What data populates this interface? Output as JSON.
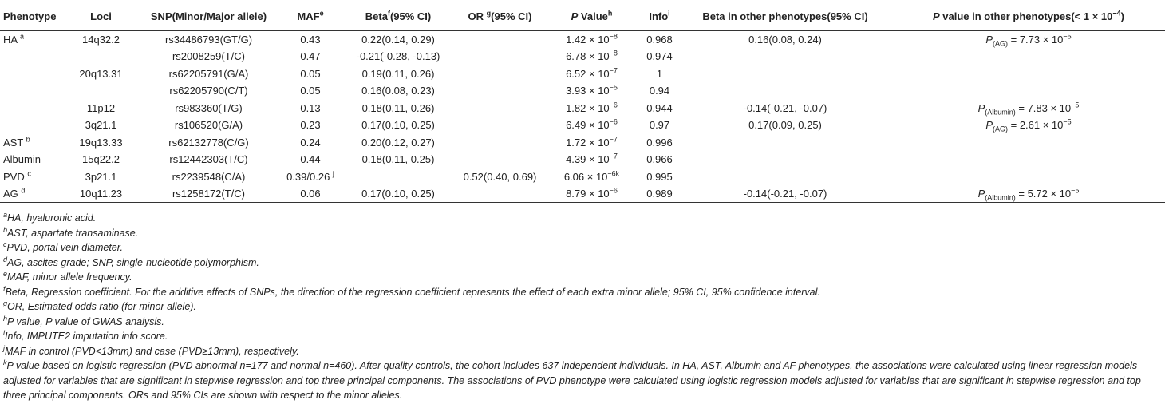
{
  "table": {
    "header": [
      "Phenotype",
      "Loci",
      "SNP(Minor/Major allele)",
      [
        {
          "t": "MAF"
        },
        {
          "t": "e",
          "s": "sup"
        }
      ],
      [
        {
          "t": "Beta"
        },
        {
          "t": "f",
          "s": "sup"
        },
        {
          "t": "(95% CI)"
        }
      ],
      [
        {
          "t": "OR "
        },
        {
          "t": "g",
          "s": "sup"
        },
        {
          "t": "(95% CI)"
        }
      ],
      [
        {
          "t": "P",
          "s": "i"
        },
        {
          "t": " Value"
        },
        {
          "t": "h",
          "s": "sup"
        }
      ],
      [
        {
          "t": "Info"
        },
        {
          "t": "i",
          "s": "sup"
        }
      ],
      "Beta in other phenotypes(95% CI)",
      [
        {
          "t": "P",
          "s": "i"
        },
        {
          "t": " value in other phenotypes(< 1 × 10"
        },
        {
          "t": "−4",
          "s": "sup"
        },
        {
          "t": ")"
        }
      ]
    ],
    "rows": [
      [
        [
          {
            "t": "HA "
          },
          {
            "t": "a",
            "s": "sup"
          }
        ],
        "14q32.2",
        "rs34486793(GT/G)",
        "0.43",
        "0.22(0.14, 0.29)",
        null,
        [
          {
            "t": "1.42 × 10"
          },
          {
            "t": "−8",
            "s": "sup"
          }
        ],
        "0.968",
        "0.16(0.08, 0.24)",
        [
          {
            "t": "P",
            "s": "i"
          },
          {
            "t": "(AG)",
            "s": "sub"
          },
          {
            "t": " = 7.73 × 10"
          },
          {
            "t": "−5",
            "s": "sup"
          }
        ]
      ],
      [
        null,
        null,
        "rs2008259(T/C)",
        "0.47",
        "-0.21(-0.28, -0.13)",
        null,
        [
          {
            "t": "6.78 × 10"
          },
          {
            "t": "−8",
            "s": "sup"
          }
        ],
        "0.974",
        null,
        null
      ],
      [
        null,
        "20q13.31",
        "rs62205791(G/A)",
        "0.05",
        "0.19(0.11, 0.26)",
        null,
        [
          {
            "t": "6.52 × 10"
          },
          {
            "t": "−7",
            "s": "sup"
          }
        ],
        "1",
        null,
        null
      ],
      [
        null,
        null,
        "rs62205790(C/T)",
        "0.05",
        "0.16(0.08, 0.23)",
        null,
        [
          {
            "t": "3.93 × 10"
          },
          {
            "t": "−5",
            "s": "sup"
          }
        ],
        "0.94",
        null,
        null
      ],
      [
        null,
        "11p12",
        "rs983360(T/G)",
        "0.13",
        "0.18(0.11, 0.26)",
        null,
        [
          {
            "t": "1.82 × 10"
          },
          {
            "t": "−6",
            "s": "sup"
          }
        ],
        "0.944",
        "-0.14(-0.21, -0.07)",
        [
          {
            "t": "P",
            "s": "i"
          },
          {
            "t": "(Albumin)",
            "s": "sub"
          },
          {
            "t": " = 7.83 × 10"
          },
          {
            "t": "−5",
            "s": "sup"
          }
        ]
      ],
      [
        null,
        "3q21.1",
        "rs106520(G/A)",
        "0.23",
        "0.17(0.10, 0.25)",
        null,
        [
          {
            "t": "6.49 × 10"
          },
          {
            "t": "−6",
            "s": "sup"
          }
        ],
        "0.97",
        "0.17(0.09, 0.25)",
        [
          {
            "t": "P",
            "s": "i"
          },
          {
            "t": "(AG)",
            "s": "sub"
          },
          {
            "t": " = 2.61 × 10"
          },
          {
            "t": "−5",
            "s": "sup"
          }
        ]
      ],
      [
        [
          {
            "t": "AST "
          },
          {
            "t": "b",
            "s": "sup"
          }
        ],
        "19q13.33",
        "rs62132778(C/G)",
        "0.24",
        "0.20(0.12, 0.27)",
        null,
        [
          {
            "t": "1.72 × 10"
          },
          {
            "t": "−7",
            "s": "sup"
          }
        ],
        "0.996",
        null,
        null
      ],
      [
        "Albumin",
        "15q22.2",
        "rs12442303(T/C)",
        "0.44",
        "0.18(0.11, 0.25)",
        null,
        [
          {
            "t": "4.39 × 10"
          },
          {
            "t": "−7",
            "s": "sup"
          }
        ],
        "0.966",
        null,
        null
      ],
      [
        [
          {
            "t": "PVD "
          },
          {
            "t": "c",
            "s": "sup"
          }
        ],
        "3p21.1",
        "rs2239548(C/A)",
        [
          {
            "t": "0.39/0.26 "
          },
          {
            "t": "j",
            "s": "sup"
          }
        ],
        null,
        "0.52(0.40, 0.69)",
        [
          {
            "t": "6.06 × 10"
          },
          {
            "t": "−6k",
            "s": "sup"
          }
        ],
        "0.995",
        null,
        null
      ],
      [
        [
          {
            "t": "AG "
          },
          {
            "t": "d",
            "s": "sup"
          }
        ],
        "10q11.23",
        "rs1258172(T/C)",
        "0.06",
        "0.17(0.10, 0.25)",
        null,
        [
          {
            "t": "8.79 × 10"
          },
          {
            "t": "−6",
            "s": "sup"
          }
        ],
        "0.989",
        "-0.14(-0.21, -0.07)",
        [
          {
            "t": "P",
            "s": "i"
          },
          {
            "t": "(Albumin)",
            "s": "sub"
          },
          {
            "t": " = 5.72 × 10"
          },
          {
            "t": "−5",
            "s": "sup"
          }
        ]
      ]
    ]
  },
  "footnotes": [
    [
      {
        "t": "a",
        "s": "sup"
      },
      {
        "t": "HA, hyaluronic acid."
      }
    ],
    [
      {
        "t": "b",
        "s": "sup"
      },
      {
        "t": "AST, aspartate transaminase."
      }
    ],
    [
      {
        "t": "c",
        "s": "sup"
      },
      {
        "t": "PVD, portal vein diameter."
      }
    ],
    [
      {
        "t": "d",
        "s": "sup"
      },
      {
        "t": "AG, ascites grade; SNP, single-nucleotide polymorphism."
      }
    ],
    [
      {
        "t": "e",
        "s": "sup"
      },
      {
        "t": "MAF, minor allele frequency."
      }
    ],
    [
      {
        "t": "f",
        "s": "sup"
      },
      {
        "t": "Beta, Regression coefficient. For the additive effects of SNPs, the direction of the regression coefficient represents the effect of each extra minor allele; 95% CI, 95% confidence interval."
      }
    ],
    [
      {
        "t": "g",
        "s": "sup"
      },
      {
        "t": "OR, Estimated odds ratio (for minor allele)."
      }
    ],
    [
      {
        "t": "h",
        "s": "sup"
      },
      {
        "t": "P value, P value of GWAS analysis."
      }
    ],
    [
      {
        "t": "i",
        "s": "sup"
      },
      {
        "t": "Info, IMPUTE2 imputation info score."
      }
    ],
    [
      {
        "t": "j",
        "s": "sup"
      },
      {
        "t": "MAF in control (PVD<13mm) and case (PVD≥13mm), respectively."
      }
    ],
    [
      {
        "t": "k",
        "s": "sup"
      },
      {
        "t": "P value based on logistic regression (PVD abnormal n=177 and normal n=460). After quality controls, the cohort includes 637 independent individuals. In HA, AST, Albumin and AF phenotypes, the associations were calculated using linear regression models adjusted for variables that are significant in stepwise regression and top three principal components. The associations of PVD phenotype were calculated using logistic regression models adjusted for variables that are significant in stepwise regression and top three principal components. ORs and 95% CIs are shown with respect to the minor alleles."
      }
    ]
  ]
}
